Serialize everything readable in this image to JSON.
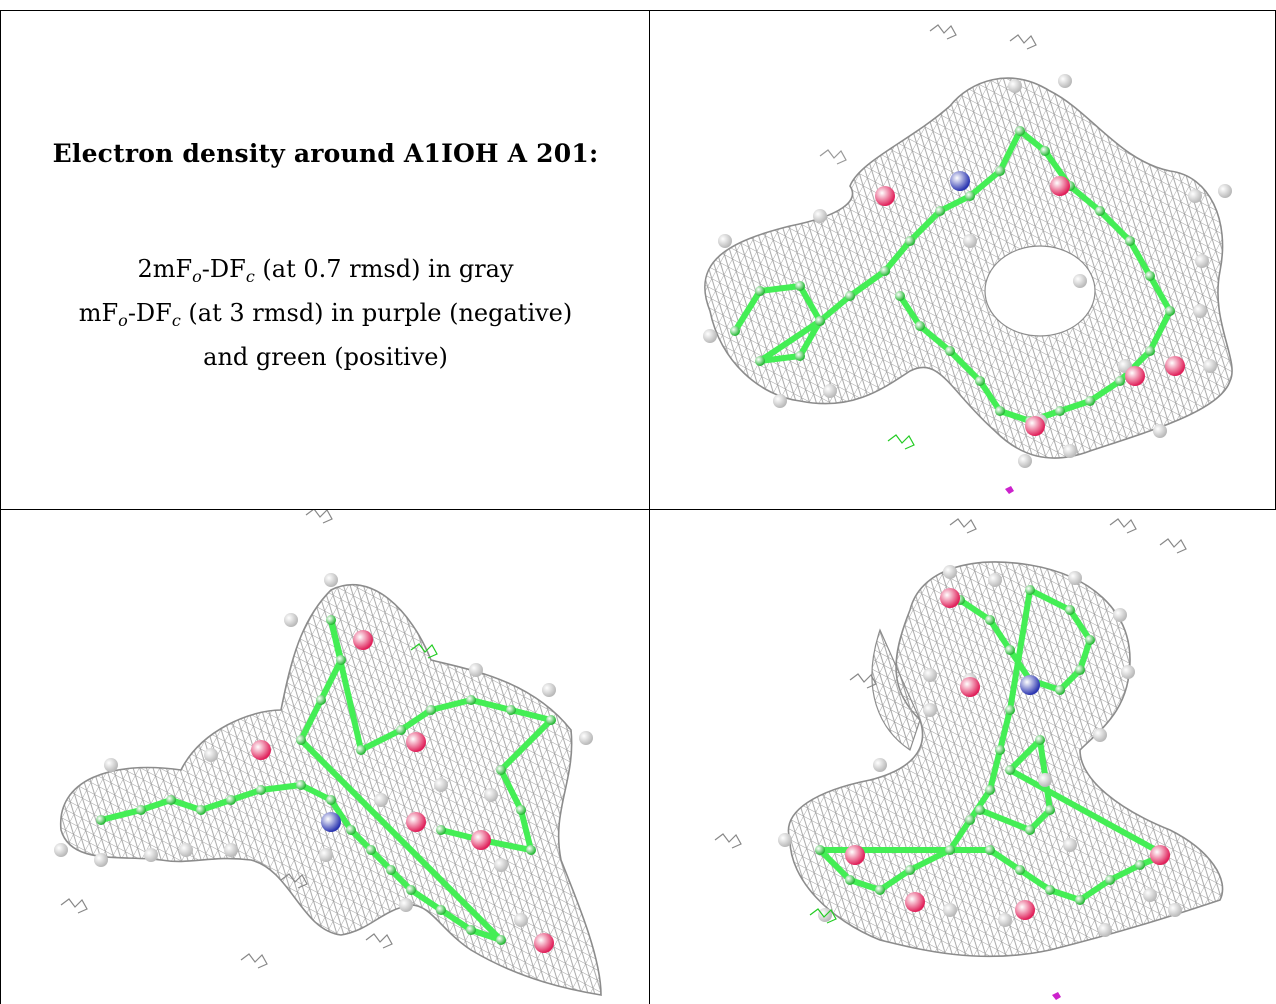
{
  "caption": {
    "title": "Electron density around A1IOH A 201:",
    "line1": {
      "prefix": "2mF",
      "sub1": "o",
      "mid": "-DF",
      "sub2": "c",
      "suffix": " (at 0.7 rmsd) in gray"
    },
    "line2": {
      "prefix": "mF",
      "sub1": "o",
      "mid": "-DF",
      "sub2": "c",
      "suffix": " (at 3 rmsd) in purple (negative)"
    },
    "line3": "and green (positive)"
  },
  "colors": {
    "mesh": "#9a9a9a",
    "carbon": "#44ee55",
    "hydrogen": "#e8e8e8",
    "oxygen": "#e0205a",
    "nitrogen": "#2a35b0",
    "positive_density": "#22cc22",
    "negative_density": "#cc22cc"
  },
  "views": [
    {
      "name": "density-view-top-right"
    },
    {
      "name": "density-view-bottom-left"
    },
    {
      "name": "density-view-bottom-right"
    }
  ]
}
